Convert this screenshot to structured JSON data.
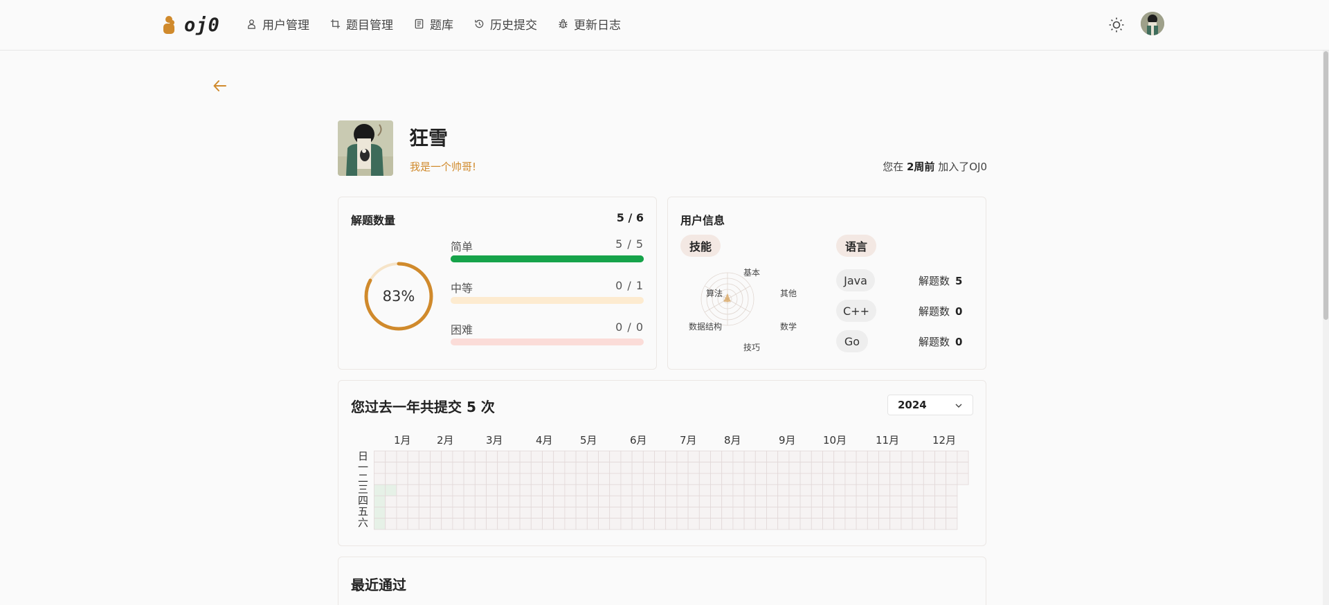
{
  "brand": {
    "logo_text": "oj0",
    "accent": "#d08a2c"
  },
  "nav": [
    {
      "label": "用户管理",
      "icon": "user-icon"
    },
    {
      "label": "题目管理",
      "icon": "crop-icon"
    },
    {
      "label": "题库",
      "icon": "book-icon"
    },
    {
      "label": "历史提交",
      "icon": "history-icon"
    },
    {
      "label": "更新日志",
      "icon": "bug-icon"
    }
  ],
  "profile": {
    "name": "狂雪",
    "bio": "我是一个帅哥!",
    "joined_prefix": "您在",
    "joined_value": "2周前",
    "joined_suffix": "加入了OJ0"
  },
  "solved": {
    "title": "解题数量",
    "total": "5 / 6",
    "percent_label": "83%",
    "percent": 83,
    "difficulties": [
      {
        "label": "简单",
        "count": "5 / 5",
        "solved": 5,
        "total": 5,
        "fill_color": "#16a34a",
        "track_color": "#16a34a"
      },
      {
        "label": "中等",
        "count": "0 / 1",
        "solved": 0,
        "total": 1,
        "fill_color": "#f0b860",
        "track_color": "#fdebd0"
      },
      {
        "label": "困难",
        "count": "0 / 0",
        "solved": 0,
        "total": 0,
        "fill_color": "#ef4444",
        "track_color": "#fbdcd8"
      }
    ]
  },
  "user_info": {
    "title": "用户信息",
    "skills_label": "技能",
    "languages_label": "语言",
    "radar_axes": [
      "基本",
      "其他",
      "数学",
      "技巧",
      "数据结构",
      "算法"
    ],
    "languages": [
      {
        "name": "Java",
        "stat_label": "解题数",
        "count": "5"
      },
      {
        "name": "C++",
        "stat_label": "解题数",
        "count": "0"
      },
      {
        "name": "Go",
        "stat_label": "解题数",
        "count": "0"
      }
    ]
  },
  "heatmap": {
    "title": "您过去一年共提交 5 次",
    "year": "2024",
    "months": [
      "1月",
      "2月",
      "3月",
      "4月",
      "5月",
      "6月",
      "7月",
      "8月",
      "9月",
      "10月",
      "11月",
      "12月"
    ],
    "weekdays": [
      "日",
      "一",
      "二",
      "三",
      "四",
      "五",
      "六"
    ],
    "active_cells": [
      [
        0,
        3
      ],
      [
        0,
        4
      ],
      [
        0,
        5
      ],
      [
        0,
        6
      ],
      [
        1,
        3
      ]
    ]
  },
  "recent": {
    "title": "最近通过"
  }
}
